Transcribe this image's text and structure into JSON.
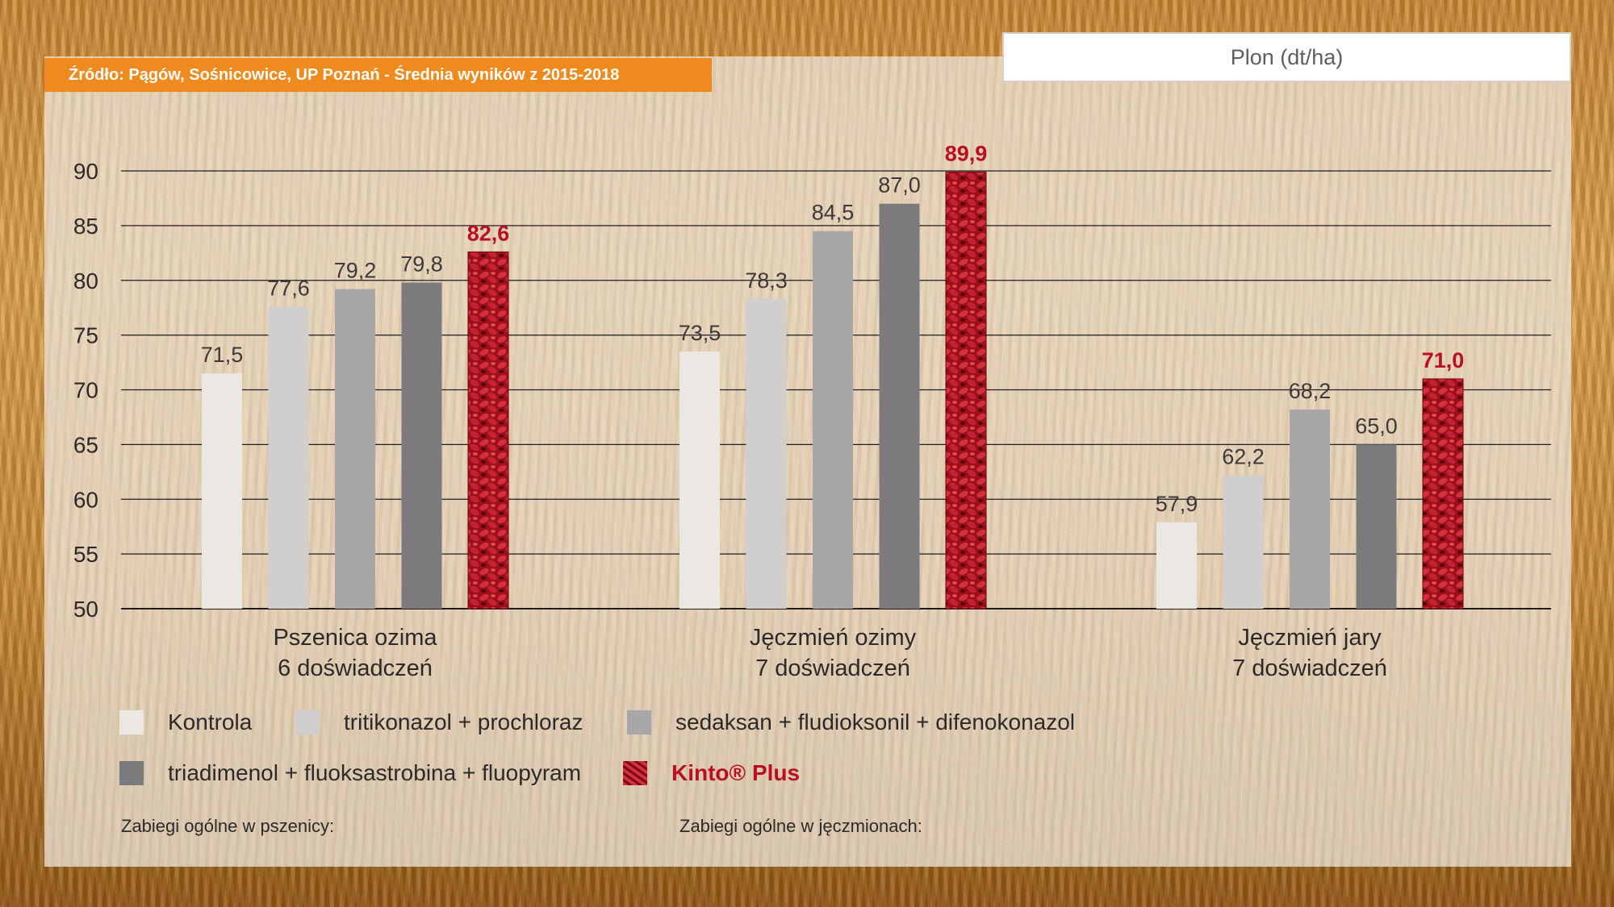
{
  "header": {
    "source": "Źródło: Pągów, Sośnicowice, UP Poznań - Średnia wyników z 2015-2018",
    "metric": "Plon (dt/ha)"
  },
  "chart_data": {
    "type": "bar",
    "ylim": [
      50,
      90
    ],
    "yticks": [
      "50",
      "55",
      "60",
      "65",
      "70",
      "75",
      "80",
      "85",
      "90"
    ],
    "grid": true,
    "categories": [
      [
        "Pszenica ozima",
        "6 doświadczeń"
      ],
      [
        "Jęczmień ozimy",
        "7 doświadczeń"
      ],
      [
        "Jęczmień jary",
        "7 doświadczeń"
      ]
    ],
    "series": [
      {
        "name": "Kontrola",
        "color": "#ebe8e4",
        "values": [
          71.5,
          73.5,
          57.9
        ],
        "labels": [
          "71,5",
          "73,5",
          "57,9"
        ]
      },
      {
        "name": "tritikonazol + prochloraz",
        "color": "#d0cfcd",
        "values": [
          77.6,
          78.3,
          62.2
        ],
        "labels": [
          "77,6",
          "78,3",
          "62,2"
        ]
      },
      {
        "name": "sedaksan + fludioksonil + difenokonazol",
        "color": "#a7a7a9",
        "values": [
          79.2,
          84.5,
          68.2
        ],
        "labels": [
          "79,2",
          "84,5",
          "68,2"
        ]
      },
      {
        "name": "triadimenol + fluoksastrobina + fluopyram",
        "color": "#7b7b7e",
        "values": [
          79.8,
          87.0,
          65.0
        ],
        "labels": [
          "79,8",
          "87,0",
          "65,0"
        ]
      },
      {
        "name": "Kinto® Plus",
        "color": "#b0101e",
        "values": [
          82.6,
          89.9,
          71.0
        ],
        "labels": [
          "82,6",
          "89,9",
          "71,0"
        ]
      }
    ]
  },
  "footer": {
    "left": "Zabiegi ogólne w pszenicy:",
    "right": "Zabiegi ogólne w jęczmionach:"
  }
}
